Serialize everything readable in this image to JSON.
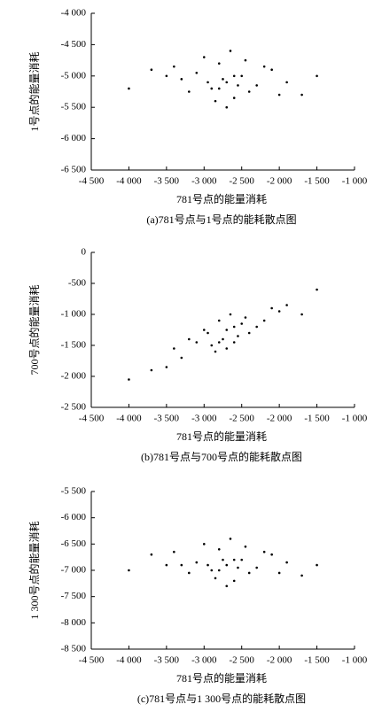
{
  "chart_data": [
    {
      "type": "scatter",
      "caption": "(a)781号点与1号点的能耗散点图",
      "xlabel": "781号点的能量消耗",
      "ylabel": "1号点的能量消耗",
      "color": "#000000",
      "xlim": [
        -4500,
        -1000
      ],
      "ylim": [
        -6500,
        -4000
      ],
      "xticks": [
        {
          "value": -4500,
          "label": "-4 500"
        },
        {
          "value": -4000,
          "label": "-4 000"
        },
        {
          "value": -3500,
          "label": "-3 500"
        },
        {
          "value": -3000,
          "label": "-3 000"
        },
        {
          "value": -2500,
          "label": "-2 500"
        },
        {
          "value": -2000,
          "label": "-2 000"
        },
        {
          "value": -1500,
          "label": "-1 500"
        },
        {
          "value": -1000,
          "label": "-1 000"
        }
      ],
      "yticks": [
        {
          "value": -4000,
          "label": "-4 000"
        },
        {
          "value": -4500,
          "label": "-4 500"
        },
        {
          "value": -5000,
          "label": "-5 000"
        },
        {
          "value": -5500,
          "label": "-5 500"
        },
        {
          "value": -6000,
          "label": "-6 000"
        },
        {
          "value": -6500,
          "label": "-6 500"
        }
      ],
      "x": [
        -2700,
        -2500,
        -2900,
        -3100,
        -2300,
        -2800,
        -2600,
        -3300,
        -2100,
        -2700,
        -3000,
        -2400,
        -3500,
        -1900,
        -2650,
        -2850,
        -2550,
        -3200,
        -2200,
        -2750,
        -4000,
        -1500,
        -3700,
        -1700,
        -2950,
        -2450,
        -2600,
        -2800,
        -3400,
        -2000
      ],
      "values": [
        -5100,
        -5000,
        -5200,
        -4950,
        -5150,
        -4800,
        -5350,
        -5050,
        -4900,
        -5500,
        -4700,
        -5250,
        -5000,
        -5100,
        -4600,
        -5400,
        -5150,
        -5250,
        -4850,
        -5050,
        -5200,
        -5000,
        -4900,
        -5300,
        -5100,
        -4750,
        -5000,
        -5200,
        -4850,
        -5300
      ]
    },
    {
      "type": "scatter",
      "caption": "(b)781号点与700号点的能耗散点图",
      "xlabel": "781号点的能量消耗",
      "ylabel": "700号点的能量消耗",
      "color": "#000000",
      "xlim": [
        -4500,
        -1000
      ],
      "ylim": [
        -2500,
        0
      ],
      "xticks": [
        {
          "value": -4500,
          "label": "-4 500"
        },
        {
          "value": -4000,
          "label": "-4 000"
        },
        {
          "value": -3500,
          "label": "-3 500"
        },
        {
          "value": -3000,
          "label": "-3 000"
        },
        {
          "value": -2500,
          "label": "-2 500"
        },
        {
          "value": -2000,
          "label": "-2 000"
        },
        {
          "value": -1500,
          "label": "-1 500"
        },
        {
          "value": -1000,
          "label": "-1 000"
        }
      ],
      "yticks": [
        0,
        -500,
        {
          "value": -1000,
          "label": "-1 000"
        },
        {
          "value": -1500,
          "label": "-1 500"
        },
        {
          "value": -2000,
          "label": "-2 000"
        },
        {
          "value": -2500,
          "label": "-2 500"
        }
      ],
      "x": [
        -2700,
        -2500,
        -2900,
        -3100,
        -2300,
        -2800,
        -2600,
        -3300,
        -2100,
        -2700,
        -3000,
        -2400,
        -3500,
        -1900,
        -2650,
        -2850,
        -2550,
        -3200,
        -2200,
        -2750,
        -4000,
        -1500,
        -3700,
        -1700,
        -2950,
        -2450,
        -2600,
        -2800,
        -3400,
        -2000
      ],
      "values": [
        -1250,
        -1150,
        -1500,
        -1450,
        -1200,
        -1100,
        -1450,
        -1700,
        -900,
        -1550,
        -1250,
        -1300,
        -1850,
        -850,
        -1000,
        -1600,
        -1350,
        -1400,
        -1100,
        -1400,
        -2050,
        -600,
        -1900,
        -1000,
        -1300,
        -1050,
        -1200,
        -1450,
        -1550,
        -950
      ]
    },
    {
      "type": "scatter",
      "caption": "(c)781号点与1 300号点的能耗散点图",
      "xlabel": "781号点的能量消耗",
      "ylabel": "1 300号点的能量消耗",
      "color": "#000000",
      "xlim": [
        -4500,
        -1000
      ],
      "ylim": [
        -8500,
        -5500
      ],
      "xticks": [
        {
          "value": -4500,
          "label": "-4 500"
        },
        {
          "value": -4000,
          "label": "-4 000"
        },
        {
          "value": -3500,
          "label": "-3 500"
        },
        {
          "value": -3000,
          "label": "-3 000"
        },
        {
          "value": -2500,
          "label": "-2 500"
        },
        {
          "value": -2000,
          "label": "-2 000"
        },
        {
          "value": -1500,
          "label": "-1 500"
        },
        {
          "value": -1000,
          "label": "-1 000"
        }
      ],
      "yticks": [
        {
          "value": -5500,
          "label": "-5 500"
        },
        {
          "value": -6000,
          "label": "-6 000"
        },
        {
          "value": -6500,
          "label": "-6 500"
        },
        {
          "value": -7000,
          "label": "-7 000"
        },
        {
          "value": -7500,
          "label": "-7 500"
        },
        {
          "value": -8000,
          "label": "-8 000"
        },
        {
          "value": -8500,
          "label": "-8 500"
        }
      ],
      "x": [
        -2700,
        -2500,
        -2900,
        -3100,
        -2300,
        -2800,
        -2600,
        -3300,
        -2100,
        -2700,
        -3000,
        -2400,
        -3500,
        -1900,
        -2650,
        -2850,
        -2550,
        -3200,
        -2200,
        -2750,
        -4000,
        -1500,
        -3700,
        -1700,
        -2950,
        -2450,
        -2600,
        -2800,
        -3400,
        -2000
      ],
      "values": [
        -6900,
        -6800,
        -7000,
        -6850,
        -6950,
        -6600,
        -7200,
        -6900,
        -6700,
        -7300,
        -6500,
        -7050,
        -6900,
        -6850,
        -6400,
        -7150,
        -6950,
        -7050,
        -6650,
        -6800,
        -7000,
        -6900,
        -6700,
        -7100,
        -6900,
        -6550,
        -6800,
        -7000,
        -6650,
        -7050
      ]
    }
  ]
}
